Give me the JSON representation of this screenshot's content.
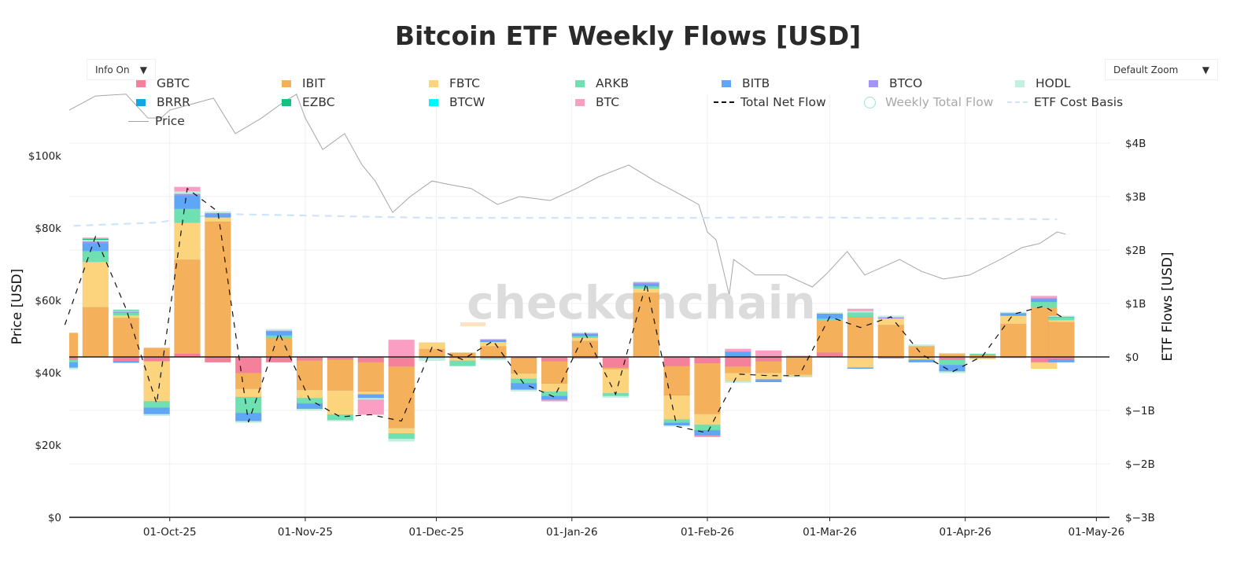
{
  "title": "Bitcoin ETF Weekly Flows [USD]",
  "controls": {
    "info": {
      "label": "Info On",
      "arrow": "▼"
    },
    "zoom": {
      "label": "Default Zoom",
      "arrow": "▼"
    }
  },
  "watermark": "_checkonchain",
  "legend": [
    {
      "name": "GBTC",
      "type": "bar",
      "color": "#f4809b"
    },
    {
      "name": "IBIT",
      "type": "bar",
      "color": "#f5b05b"
    },
    {
      "name": "FBTC",
      "type": "bar",
      "color": "#fdd47e"
    },
    {
      "name": "ARKB",
      "type": "bar",
      "color": "#6fe0b2"
    },
    {
      "name": "BITB",
      "type": "bar",
      "color": "#5fa6f7"
    },
    {
      "name": "BTCO",
      "type": "bar",
      "color": "#a594f7"
    },
    {
      "name": "HODL",
      "type": "bar",
      "color": "#c0f1e0"
    },
    {
      "name": "BRRR",
      "type": "bar",
      "color": "#0ea5e9"
    },
    {
      "name": "EZBC",
      "type": "bar",
      "color": "#12c27f"
    },
    {
      "name": "BTCW",
      "type": "bar",
      "color": "#00f5ff"
    },
    {
      "name": "BTC",
      "type": "bar",
      "color": "#fb9ec3"
    },
    {
      "name": "Total Net Flow",
      "type": "dash",
      "color": "#111111"
    },
    {
      "name": "Weekly Total Flow",
      "type": "circle",
      "color": "#9fe3cf",
      "hidden": true
    },
    {
      "name": "ETF Cost Basis",
      "type": "dash",
      "color": "#cfe3fb"
    },
    {
      "name": "Price",
      "type": "line",
      "color": "#a0a0a0"
    }
  ],
  "chart_data": {
    "type": "bar",
    "barmode": "relative",
    "title": "Bitcoin ETF Weekly Flows [USD]",
    "xlabel": "",
    "y_left_label": "Price [USD]",
    "y_right_label": "ETF Flows [USD]",
    "x_range": [
      "2025-09-08",
      "2026-05-04"
    ],
    "x_ticks": [
      "01-Oct-25",
      "01-Nov-25",
      "01-Dec-25",
      "01-Jan-26",
      "01-Feb-26",
      "01-Mar-26",
      "01-Apr-26",
      "01-May-26"
    ],
    "x_tick_dates": [
      "2025-10-01",
      "2025-11-01",
      "2025-12-01",
      "2026-01-01",
      "2026-02-01",
      "2026-03-01",
      "2026-04-01",
      "2026-05-01"
    ],
    "y_left_range": [
      0,
      117000
    ],
    "y_left_ticks": [
      "$0",
      "$20k",
      "$40k",
      "$60k",
      "$80k",
      "$100k"
    ],
    "y_left_tick_values": [
      0,
      20000,
      40000,
      60000,
      80000,
      100000
    ],
    "y_right_range_billions": [
      -3,
      4
    ],
    "y_right_ticks": [
      "$−3B",
      "$−2B",
      "$−1B",
      "$0",
      "$1B",
      "$2B",
      "$3B",
      "$4B"
    ],
    "y_right_tick_values": [
      -3,
      -2,
      -1,
      0,
      1,
      2,
      3,
      4
    ],
    "grid": true,
    "legend_position": "top",
    "series_order": [
      "GBTC",
      "IBIT",
      "FBTC",
      "ARKB",
      "BITB",
      "BTCO",
      "HODL",
      "BRRR",
      "EZBC",
      "BTCW",
      "BTC"
    ],
    "weeks": [
      "2025-09-07",
      "2025-09-14",
      "2025-09-21",
      "2025-09-28",
      "2025-10-05",
      "2025-10-12",
      "2025-10-19",
      "2025-10-26",
      "2025-11-02",
      "2025-11-09",
      "2025-11-16",
      "2025-11-23",
      "2025-11-30",
      "2025-12-07",
      "2025-12-14",
      "2025-12-21",
      "2025-12-28",
      "2026-01-04",
      "2026-01-11",
      "2026-01-18",
      "2026-01-25",
      "2026-02-01",
      "2026-02-08",
      "2026-02-15",
      "2026-02-22",
      "2026-03-01",
      "2026-03-08",
      "2026-03-15",
      "2026-03-22",
      "2026-03-29",
      "2026-04-05",
      "2026-04-12",
      "2026-04-19",
      "2026-04-23"
    ],
    "flows_billions": [
      [
        -0.05,
        0.45,
        0,
        -0.05,
        -0.1,
        0,
        -0.03,
        0,
        0,
        0,
        0
      ],
      [
        0,
        0.93,
        0.85,
        0.2,
        0.15,
        0.03,
        0.03,
        0,
        0.02,
        0,
        0.02
      ],
      [
        -0.08,
        0.73,
        0.05,
        0.05,
        -0.03,
        0.02,
        0.02,
        0,
        0.01,
        0,
        0
      ],
      [
        -0.08,
        0.17,
        -0.75,
        -0.12,
        -0.12,
        0,
        -0.03,
        0,
        0,
        0,
        0
      ],
      [
        0.06,
        1.76,
        0.69,
        0.26,
        0.25,
        0.03,
        0.05,
        0,
        0,
        0,
        0.08
      ],
      [
        -0.1,
        2.53,
        0.08,
        0,
        0.06,
        0.02,
        0.03,
        0,
        0,
        0,
        0
      ],
      [
        -0.3,
        -0.3,
        -0.15,
        -0.3,
        -0.15,
        0,
        -0.03,
        0,
        0,
        0,
        0
      ],
      [
        -0.1,
        0.35,
        0,
        0.05,
        0.07,
        0.02,
        0.03,
        0,
        0,
        0,
        0
      ],
      [
        -0.07,
        -0.55,
        -0.15,
        -0.1,
        -0.1,
        0,
        -0.03,
        0,
        0,
        0,
        0
      ],
      [
        -0.05,
        -0.58,
        -0.45,
        -0.1,
        0,
        0,
        -0.02,
        0,
        0,
        0,
        0
      ],
      [
        -0.1,
        -0.55,
        -0.05,
        0,
        -0.07,
        0,
        -0.03,
        0,
        0,
        0,
        -0.28
      ],
      [
        -0.18,
        -1.15,
        -0.1,
        -0.1,
        0,
        0,
        -0.05,
        0,
        0,
        0,
        0.32
      ],
      [
        0,
        0.15,
        0.12,
        0,
        -0.02,
        0,
        -0.05,
        0,
        0,
        0,
        0
      ],
      [
        -0.02,
        0.08,
        -0.05,
        -0.1,
        0,
        0,
        0,
        0,
        0,
        0,
        0
      ],
      [
        -0.03,
        0.2,
        0.08,
        0,
        0.03,
        0.02,
        -0.03,
        0,
        0,
        0,
        0
      ],
      [
        -0.03,
        -0.28,
        -0.1,
        -0.08,
        -0.12,
        0,
        -0.03,
        0,
        0,
        0,
        0
      ],
      [
        -0.08,
        -0.42,
        -0.15,
        -0.08,
        -0.07,
        0,
        0,
        0,
        0,
        0,
        -0.03
      ],
      [
        -0.03,
        0.3,
        0.06,
        0.03,
        0.04,
        0.01,
        0.02,
        0,
        0,
        0,
        0
      ],
      [
        -0.2,
        -0.03,
        -0.45,
        -0.05,
        0,
        0,
        -0.03,
        0,
        0,
        0,
        0
      ],
      [
        0,
        1.2,
        0.08,
        0.04,
        0.05,
        0.02,
        0.02,
        0,
        0,
        0,
        0
      ],
      [
        -0.17,
        -0.55,
        -0.45,
        -0.06,
        -0.05,
        0,
        -0.02,
        0,
        0,
        0,
        0
      ],
      [
        -0.12,
        -0.95,
        -0.2,
        -0.1,
        -0.1,
        0,
        0,
        0,
        0,
        0,
        -0.03
      ],
      [
        -0.18,
        -0.12,
        -0.15,
        0,
        0.1,
        0,
        -0.03,
        0,
        0,
        0,
        0.05
      ],
      [
        -0.08,
        -0.22,
        -0.12,
        0,
        -0.05,
        0,
        0,
        0,
        0,
        0,
        0.12
      ],
      [
        0,
        -0.33,
        -0.03,
        0,
        0,
        0,
        -0.02,
        0,
        0,
        0,
        0.02
      ],
      [
        0.08,
        0.6,
        0,
        0.04,
        0.08,
        0.01,
        0.02,
        0,
        0,
        0,
        0
      ],
      [
        -0.02,
        0.75,
        -0.18,
        0.08,
        -0.02,
        0,
        0.03,
        0,
        0,
        0,
        0.04
      ],
      [
        -0.03,
        0.6,
        0.12,
        0,
        0,
        0.02,
        0.03,
        0,
        0,
        0,
        0
      ],
      [
        -0.02,
        0.2,
        -0.03,
        0,
        -0.05,
        0,
        0.03,
        0,
        0,
        0,
        0
      ],
      [
        -0.05,
        0.05,
        0.02,
        -0.1,
        -0.12,
        0,
        -0.03,
        0,
        0,
        0,
        0
      ],
      [
        -0.02,
        0.03,
        -0.02,
        0.03,
        0,
        0,
        0,
        0,
        0,
        0,
        0
      ],
      [
        0,
        0.62,
        0.15,
        0,
        0.05,
        0,
        0.02,
        0,
        0,
        0,
        -0.02
      ],
      [
        -0.1,
        0.93,
        -0.12,
        0.1,
        0.05,
        0.02,
        0,
        0,
        0,
        0,
        0.04
      ],
      [
        -0.05,
        0.65,
        0.04,
        0.05,
        -0.05,
        0.01,
        0.02,
        0,
        0,
        0,
        0
      ]
    ],
    "total_net_flow_billions": [
      0.6,
      2.25,
      0.9,
      -0.87,
      3.15,
      2.72,
      -1.22,
      0.45,
      -0.8,
      -1.12,
      -1.08,
      -1.2,
      0.18,
      -0.05,
      0.3,
      -0.5,
      -0.75,
      0.45,
      -0.7,
      1.38,
      -1.3,
      -1.42,
      -0.32,
      -0.35,
      -0.35,
      0.75,
      0.55,
      0.75,
      0.05,
      -0.28,
      0.02,
      0.8,
      0.95,
      0.75
    ],
    "price": {
      "dates": [
        "2025-09-08",
        "2025-09-14",
        "2025-09-21",
        "2025-09-26",
        "2025-09-29",
        "2025-10-01",
        "2025-10-11",
        "2025-10-16",
        "2025-10-22",
        "2025-10-27",
        "2025-10-30",
        "2025-11-01",
        "2025-11-05",
        "2025-11-10",
        "2025-11-14",
        "2025-11-17",
        "2025-11-21",
        "2025-11-25",
        "2025-11-30",
        "2025-12-04",
        "2025-12-09",
        "2025-12-15",
        "2025-12-20",
        "2025-12-27",
        "2026-01-02",
        "2026-01-07",
        "2026-01-14",
        "2026-01-20",
        "2026-01-25",
        "2026-01-30",
        "2026-02-01",
        "2026-02-03",
        "2026-02-06",
        "2026-02-07",
        "2026-02-12",
        "2026-02-19",
        "2026-02-25",
        "2026-02-28",
        "2026-03-05",
        "2026-03-09",
        "2026-03-17",
        "2026-03-22",
        "2026-03-27",
        "2026-04-02",
        "2026-04-09",
        "2026-04-14",
        "2026-04-18",
        "2026-04-22",
        "2026-04-24"
      ],
      "values": [
        112600,
        116500,
        117000,
        110400,
        110400,
        112600,
        115900,
        106100,
        110400,
        114800,
        117000,
        110400,
        101700,
        106100,
        97400,
        93000,
        84300,
        88700,
        93000,
        92000,
        90900,
        86500,
        88700,
        87600,
        90900,
        94100,
        97400,
        93000,
        89800,
        86500,
        78900,
        76700,
        61500,
        71300,
        67000,
        67000,
        63700,
        67000,
        73500,
        67000,
        71300,
        68000,
        65900,
        67000,
        71300,
        74600,
        75700,
        78900,
        78300
      ]
    },
    "etf_cost_basis": {
      "dates": [
        "2025-09-09",
        "2025-09-28",
        "2025-10-12",
        "2025-11-30",
        "2026-01-31",
        "2026-02-18",
        "2026-04-22"
      ],
      "values": [
        80600,
        81500,
        83900,
        82800,
        82800,
        83000,
        82400
      ]
    }
  }
}
